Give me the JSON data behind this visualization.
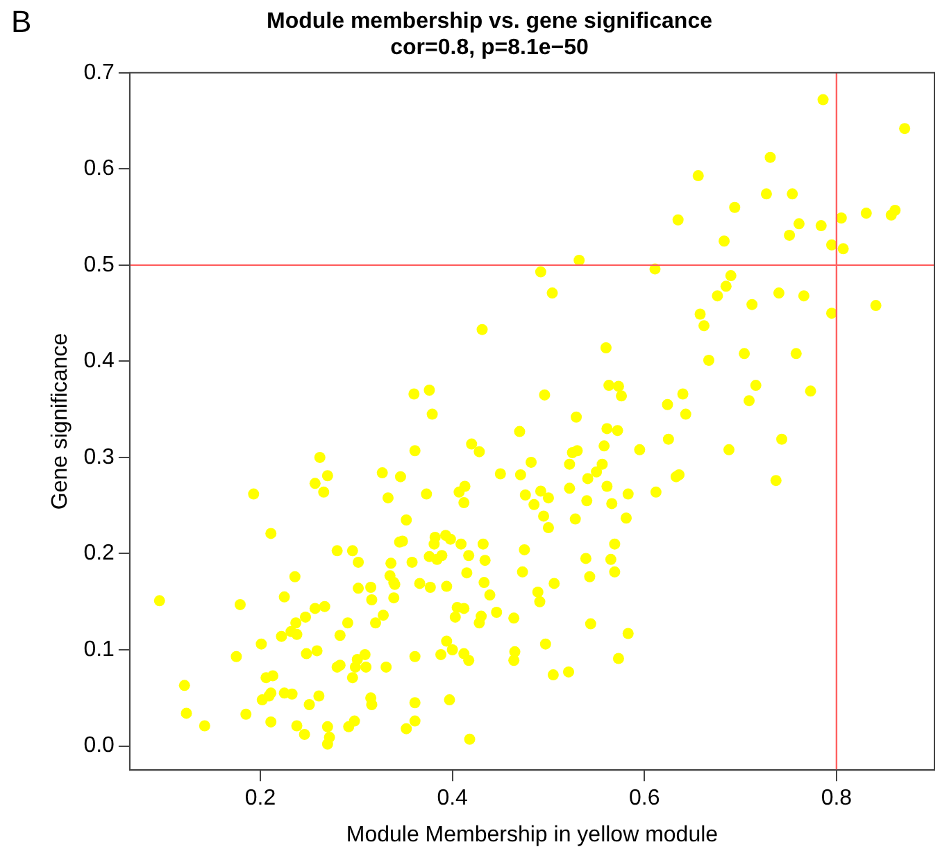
{
  "chart_data": {
    "type": "scatter",
    "title": "Module membership vs. gene significance",
    "subtitle": "cor=0.8, p=8.1e−50",
    "xlabel": "Module Membership in yellow module",
    "ylabel": "Gene significance",
    "annotations": [
      "B"
    ],
    "xlim": [
      0.064,
      0.902
    ],
    "ylim": [
      -0.025,
      0.7
    ],
    "xticks": [
      0.2,
      0.4,
      0.6,
      0.8
    ],
    "yticks": [
      {
        "value": 0,
        "label": "0.0"
      },
      0.1,
      0.2,
      0.3,
      0.4,
      0.5,
      0.6,
      0.7
    ],
    "grid": false,
    "legend": false,
    "marker": "circle",
    "ref_lines": [
      {
        "axis": "x",
        "value": 0.8,
        "color": "#ff6060"
      },
      {
        "axis": "y",
        "value": 0.5,
        "color": "#ff6060"
      }
    ],
    "series": [
      {
        "color": "#ffff00",
        "x": [
          0.095,
          0.121,
          0.123,
          0.142,
          0.175,
          0.179,
          0.185,
          0.193,
          0.201,
          0.202,
          0.206,
          0.209,
          0.211,
          0.211,
          0.213,
          0.211,
          0.222,
          0.225,
          0.225,
          0.232,
          0.233,
          0.236,
          0.237,
          0.238,
          0.238,
          0.246,
          0.247,
          0.248,
          0.251,
          0.257,
          0.257,
          0.259,
          0.261,
          0.262,
          0.266,
          0.267,
          0.27,
          0.27,
          0.272,
          0.27,
          0.28,
          0.28,
          0.283,
          0.283,
          0.291,
          0.292,
          0.296,
          0.296,
          0.298,
          0.299,
          0.301,
          0.302,
          0.302,
          0.309,
          0.31,
          0.315,
          0.316,
          0.315,
          0.316,
          0.32,
          0.327,
          0.328,
          0.331,
          0.333,
          0.336,
          0.335,
          0.339,
          0.339,
          0.345,
          0.561,
          0.572,
          0.47,
          0.42,
          0.428,
          0.361,
          0.525,
          0.53,
          0.558,
          0.595,
          0.522,
          0.556,
          0.482,
          0.55,
          0.45,
          0.471,
          0.346,
          0.541,
          0.413,
          0.407,
          0.492,
          0.561,
          0.373,
          0.476,
          0.5,
          0.583,
          0.612,
          0.412,
          0.485,
          0.522,
          0.54,
          0.566,
          0.352,
          0.495,
          0.528,
          0.581,
          0.5,
          0.382,
          0.393,
          0.398,
          0.348,
          0.381,
          0.409,
          0.432,
          0.569,
          0.475,
          0.376,
          0.384,
          0.389,
          0.417,
          0.434,
          0.539,
          0.565,
          0.358,
          0.34,
          0.415,
          0.473,
          0.543,
          0.569,
          0.366,
          0.377,
          0.394,
          0.433,
          0.506,
          0.439,
          0.489,
          0.491,
          0.405,
          0.412,
          0.403,
          0.43,
          0.428,
          0.446,
          0.464,
          0.544,
          0.583,
          0.394,
          0.4,
          0.388,
          0.412,
          0.417,
          0.361,
          0.465,
          0.464,
          0.497,
          0.573,
          0.505,
          0.521,
          0.361,
          0.397,
          0.352,
          0.361,
          0.418,
          0.532,
          0.492,
          0.611,
          0.504,
          0.431,
          0.56,
          0.563,
          0.573,
          0.576,
          0.36,
          0.376,
          0.496,
          0.379,
          0.529,
          0.786,
          0.871,
          0.731,
          0.656,
          0.727,
          0.754,
          0.694,
          0.635,
          0.831,
          0.861,
          0.857,
          0.805,
          0.761,
          0.784,
          0.751,
          0.683,
          0.795,
          0.807,
          0.69,
          0.685,
          0.676,
          0.74,
          0.766,
          0.712,
          0.841,
          0.795,
          0.658,
          0.662,
          0.667,
          0.704,
          0.758,
          0.716,
          0.773,
          0.709,
          0.64,
          0.624,
          0.643,
          0.625,
          0.688,
          0.743,
          0.636,
          0.633,
          0.737
        ],
        "values": [
          0.151,
          0.063,
          0.034,
          0.021,
          0.093,
          0.147,
          0.033,
          0.262,
          0.106,
          0.048,
          0.071,
          0.052,
          0.221,
          0.025,
          0.073,
          0.055,
          0.114,
          0.155,
          0.055,
          0.119,
          0.054,
          0.176,
          0.128,
          0.116,
          0.021,
          0.012,
          0.134,
          0.096,
          0.043,
          0.143,
          0.273,
          0.099,
          0.052,
          0.3,
          0.264,
          0.145,
          0.281,
          0.02,
          0.009,
          0.002,
          0.203,
          0.082,
          0.115,
          0.084,
          0.128,
          0.02,
          0.071,
          0.203,
          0.026,
          0.082,
          0.09,
          0.191,
          0.164,
          0.095,
          0.082,
          0.165,
          0.152,
          0.05,
          0.043,
          0.128,
          0.284,
          0.136,
          0.082,
          0.258,
          0.19,
          0.177,
          0.17,
          0.154,
          0.212,
          0.33,
          0.328,
          0.327,
          0.314,
          0.306,
          0.307,
          0.305,
          0.307,
          0.312,
          0.308,
          0.293,
          0.293,
          0.295,
          0.285,
          0.283,
          0.282,
          0.28,
          0.278,
          0.27,
          0.264,
          0.265,
          0.27,
          0.262,
          0.261,
          0.258,
          0.262,
          0.264,
          0.253,
          0.251,
          0.268,
          0.255,
          0.252,
          0.235,
          0.239,
          0.236,
          0.237,
          0.227,
          0.217,
          0.219,
          0.215,
          0.213,
          0.21,
          0.21,
          0.21,
          0.21,
          0.204,
          0.197,
          0.194,
          0.198,
          0.198,
          0.193,
          0.195,
          0.194,
          0.191,
          0.168,
          0.18,
          0.181,
          0.176,
          0.181,
          0.169,
          0.165,
          0.166,
          0.17,
          0.169,
          0.157,
          0.16,
          0.15,
          0.144,
          0.143,
          0.134,
          0.135,
          0.128,
          0.139,
          0.133,
          0.127,
          0.117,
          0.109,
          0.1,
          0.095,
          0.096,
          0.089,
          0.093,
          0.098,
          0.089,
          0.106,
          0.091,
          0.074,
          0.077,
          0.045,
          0.048,
          0.018,
          0.026,
          0.007,
          0.505,
          0.493,
          0.496,
          0.471,
          0.433,
          0.414,
          0.375,
          0.374,
          0.364,
          0.366,
          0.37,
          0.365,
          0.345,
          0.342,
          0.672,
          0.642,
          0.612,
          0.593,
          0.574,
          0.574,
          0.56,
          0.547,
          0.554,
          0.557,
          0.552,
          0.549,
          0.543,
          0.541,
          0.531,
          0.525,
          0.521,
          0.517,
          0.489,
          0.478,
          0.468,
          0.471,
          0.468,
          0.459,
          0.458,
          0.45,
          0.449,
          0.437,
          0.401,
          0.408,
          0.408,
          0.375,
          0.369,
          0.359,
          0.366,
          0.355,
          0.345,
          0.319,
          0.308,
          0.319,
          0.282,
          0.28,
          0.276
        ]
      }
    ]
  }
}
